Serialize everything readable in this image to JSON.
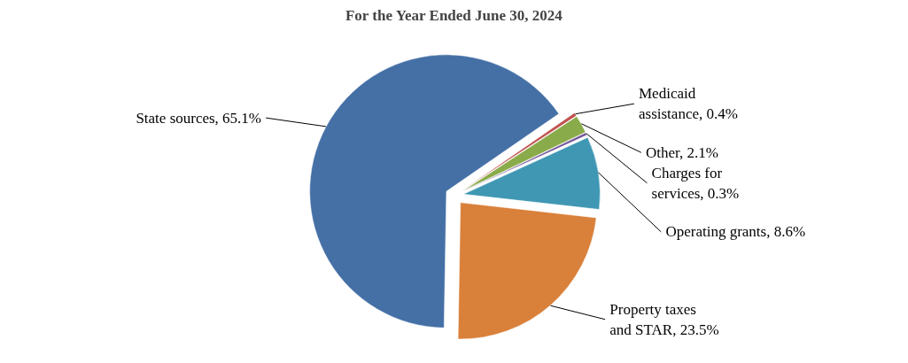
{
  "chart_data": {
    "type": "pie",
    "title": "For the Year Ended June 30, 2024",
    "categories": [
      "State sources",
      "Medicaid assistance",
      "Other",
      "Charges for services",
      "Operating grants",
      "Property taxes and STAR"
    ],
    "values": [
      65.1,
      0.4,
      2.1,
      0.3,
      8.6,
      23.5
    ],
    "value_labels": [
      "65.1%",
      "0.4%",
      "2.1%",
      "0.3%",
      "8.6%",
      "23.5%"
    ],
    "colors": [
      "#4570a6",
      "#c0504d",
      "#8aab4a",
      "#6b4f96",
      "#3f97b3",
      "#d9803a"
    ]
  }
}
